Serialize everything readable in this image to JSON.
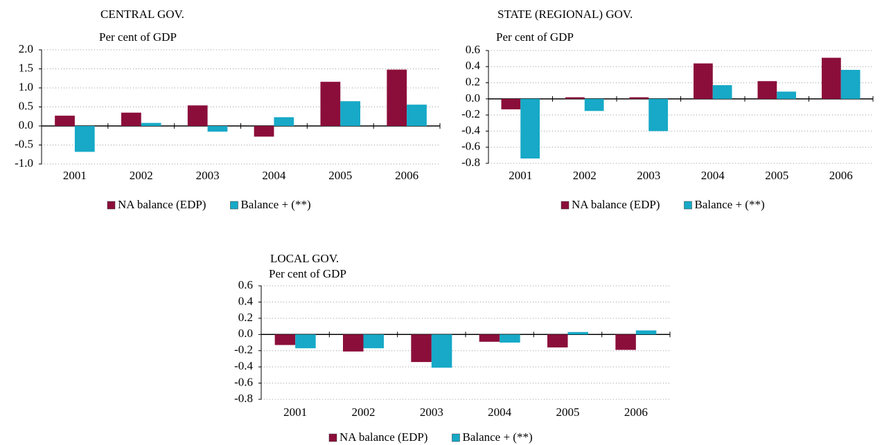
{
  "chart_data": [
    {
      "type": "bar",
      "title": "CENTRAL GOV.",
      "subtitle": "Per cent of GDP",
      "categories": [
        "2001",
        "2002",
        "2003",
        "2004",
        "2005",
        "2006"
      ],
      "series": [
        {
          "name": "NA balance (EDP)",
          "color": "#8b0e3a",
          "values": [
            0.27,
            0.35,
            0.54,
            -0.28,
            1.16,
            1.48
          ]
        },
        {
          "name": "Balance + (**)",
          "color": "#17a9c7",
          "values": [
            -0.68,
            0.08,
            -0.15,
            0.23,
            0.65,
            0.56
          ]
        }
      ],
      "ylim": [
        -1.0,
        2.0
      ],
      "yticks": [
        {
          "value": 2.0,
          "label": "2.0"
        },
        1.5,
        {
          "value": 1.0,
          "label": "1.0"
        },
        0.5,
        {
          "value": 0.0,
          "label": "0.0"
        },
        -0.5,
        {
          "value": -1.0,
          "label": "-1.0"
        }
      ],
      "grid": true
    },
    {
      "type": "bar",
      "title": "STATE (REGIONAL) GOV.",
      "subtitle": "Per cent of GDP",
      "categories": [
        "2001",
        "2002",
        "2003",
        "2004",
        "2005",
        "2006"
      ],
      "series": [
        {
          "name": "NA balance (EDP)",
          "color": "#8b0e3a",
          "values": [
            -0.13,
            0.02,
            0.02,
            0.44,
            0.22,
            0.51
          ]
        },
        {
          "name": "Balance + (**)",
          "color": "#17a9c7",
          "values": [
            -0.74,
            -0.15,
            -0.4,
            0.17,
            0.09,
            0.36
          ]
        }
      ],
      "ylim": [
        -0.8,
        0.6
      ],
      "yticks": [
        0.6,
        0.4,
        0.2,
        {
          "value": 0.0,
          "label": "0.0"
        },
        -0.2,
        -0.4,
        -0.6,
        -0.8
      ],
      "grid": true
    },
    {
      "type": "bar",
      "title": "LOCAL GOV.",
      "subtitle": "Per cent of GDP",
      "categories": [
        "2001",
        "2002",
        "2003",
        "2004",
        "2005",
        "2006"
      ],
      "series": [
        {
          "name": "NA balance (EDP)",
          "color": "#8b0e3a",
          "values": [
            -0.13,
            -0.21,
            -0.34,
            -0.09,
            -0.16,
            -0.19
          ]
        },
        {
          "name": "Balance + (**)",
          "color": "#17a9c7",
          "values": [
            -0.17,
            -0.17,
            -0.41,
            -0.1,
            0.03,
            0.05
          ]
        }
      ],
      "ylim": [
        -0.8,
        0.6
      ],
      "yticks": [
        0.6,
        0.4,
        0.2,
        {
          "value": 0.0,
          "label": "0.0"
        },
        -0.2,
        -0.4,
        -0.6,
        -0.8
      ],
      "grid": true
    }
  ]
}
